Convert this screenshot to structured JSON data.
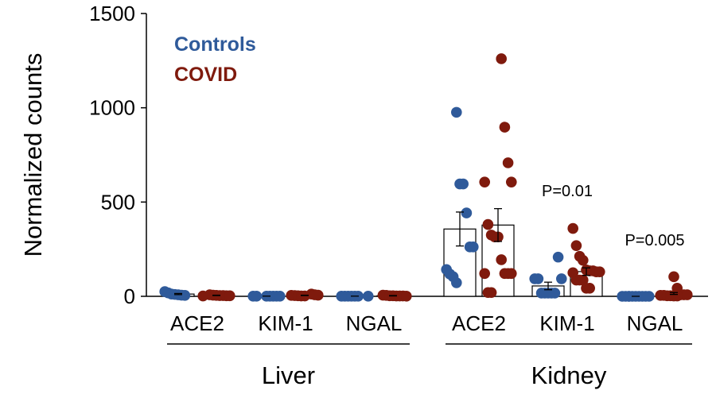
{
  "chart_data": {
    "type": "bar",
    "ylabel": "Normalized counts",
    "ylim": [
      0,
      1500
    ],
    "yticks": [
      0,
      500,
      1000,
      1500
    ],
    "grid": false,
    "legend": {
      "placement": "top-left",
      "entries": [
        "Controls",
        "COVID"
      ]
    },
    "colors": {
      "Controls": "#2f5a9a",
      "COVID": "#7f1a0d"
    },
    "groups": [
      {
        "label": "Liver",
        "categories": [
          "ACE2",
          "KIM-1",
          "NGAL"
        ]
      },
      {
        "label": "Kidney",
        "categories": [
          "ACE2",
          "KIM-1",
          "NGAL"
        ]
      }
    ],
    "series": [
      {
        "name": "Controls",
        "tissue": "Liver",
        "gene": "ACE2",
        "mean": 12,
        "sem": 3,
        "points": [
          25,
          18,
          12,
          10,
          8,
          6,
          5
        ]
      },
      {
        "name": "COVID",
        "tissue": "Liver",
        "gene": "ACE2",
        "mean": 5,
        "sem": 1,
        "points": [
          8,
          6,
          5,
          4,
          4,
          3,
          3,
          2
        ]
      },
      {
        "name": "Controls",
        "tissue": "Liver",
        "gene": "KIM-1",
        "mean": 1,
        "sem": 0,
        "points": [
          1,
          1,
          1,
          1,
          1,
          1,
          1
        ]
      },
      {
        "name": "COVID",
        "tissue": "Liver",
        "gene": "KIM-1",
        "mean": 5,
        "sem": 1,
        "points": [
          12,
          8,
          6,
          5,
          4,
          3,
          2,
          2
        ]
      },
      {
        "name": "Controls",
        "tissue": "Liver",
        "gene": "NGAL",
        "mean": 1,
        "sem": 0,
        "points": [
          1,
          1,
          1,
          1,
          1,
          1,
          1
        ]
      },
      {
        "name": "COVID",
        "tissue": "Liver",
        "gene": "NGAL",
        "mean": 3,
        "sem": 1,
        "points": [
          6,
          5,
          3,
          3,
          2,
          2,
          2,
          1
        ]
      },
      {
        "name": "Controls",
        "tissue": "Kidney",
        "gene": "ACE2",
        "mean": 357,
        "sem": 90,
        "points": [
          976,
          596,
          596,
          442,
          262,
          262,
          142,
          118,
          104,
          72
        ]
      },
      {
        "name": "COVID",
        "tissue": "Kidney",
        "gene": "ACE2",
        "mean": 378,
        "sem": 87,
        "points": [
          1260,
          897,
          708,
          606,
          606,
          381,
          325,
          315,
          315,
          194,
          121,
          121,
          121,
          121,
          20,
          20
        ]
      },
      {
        "name": "Controls",
        "tissue": "Kidney",
        "gene": "KIM-1",
        "mean": 55,
        "sem": 20,
        "points": [
          208,
          93,
          93,
          93,
          17,
          17,
          17,
          17,
          17
        ]
      },
      {
        "name": "COVID",
        "tissue": "Kidney",
        "gene": "KIM-1",
        "mean": 131,
        "sem": 20,
        "points": [
          360,
          269,
          212,
          191,
          140,
          135,
          135,
          130,
          130,
          125,
          86,
          86,
          86,
          43,
          43
        ]
      },
      {
        "name": "Controls",
        "tissue": "Kidney",
        "gene": "NGAL",
        "mean": 0,
        "sem": 0,
        "points": [
          0,
          0,
          0,
          0,
          0,
          0,
          0,
          0,
          0,
          0
        ]
      },
      {
        "name": "COVID",
        "tissue": "Kidney",
        "gene": "NGAL",
        "mean": 15,
        "sem": 5,
        "points": [
          104,
          43,
          8,
          8,
          8,
          5,
          5,
          3,
          3,
          2,
          2
        ]
      }
    ],
    "annotations": [
      {
        "text": "P=0.01",
        "gene": "KIM-1",
        "tissue": "Kidney",
        "y": 530
      },
      {
        "text": "P=0.005",
        "gene": "NGAL",
        "tissue": "Kidney",
        "y": 270
      }
    ]
  }
}
